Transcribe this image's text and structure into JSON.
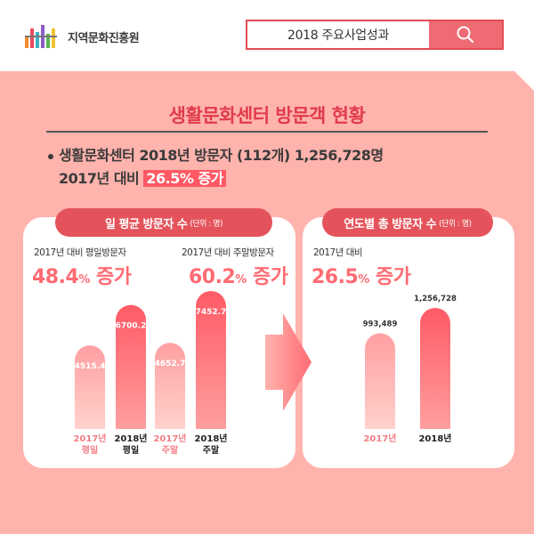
{
  "header": {
    "org_name": "지역문화진흥원",
    "search_text": "2018 주요사업성과",
    "colors": {
      "accent": "#e64c55",
      "button": "#ef6b73"
    }
  },
  "title": "생활문화센터 방문객 현황",
  "summary": {
    "line1": "생활문화센터 2018년 방문자 (112개) 1,256,728명",
    "line2_prefix": "2017년 대비 ",
    "line2_highlight": "26.5% 증가"
  },
  "chart_data": [
    {
      "type": "bar",
      "title": "일 평균 방문자 수",
      "unit": "(단위 : 명)",
      "categories": [
        "2017년 평일",
        "2018년 평일",
        "2017년 주말",
        "2018년 주말"
      ],
      "category_lines": [
        [
          "2017년",
          "평일"
        ],
        [
          "2018년",
          "평일"
        ],
        [
          "2017년",
          "주말"
        ],
        [
          "2018년",
          "주말"
        ]
      ],
      "values": [
        4515.4,
        6700.2,
        4652.7,
        7452.7
      ],
      "value_labels": [
        "4515.4",
        "6700.2",
        "4652.7",
        "7452.7"
      ],
      "annotations": [
        {
          "label": "2017년 대비 평일방문자",
          "value": "48.4",
          "unit": "%",
          "suffix": " 증가"
        },
        {
          "label": "2017년 대비 주말방문자",
          "value": "60.2",
          "unit": "%",
          "suffix": " 증가"
        }
      ]
    },
    {
      "type": "bar",
      "title": "연도별 총 방문자 수",
      "unit": "(단위 : 명)",
      "categories": [
        "2017년",
        "2018년"
      ],
      "values": [
        993489,
        1256728
      ],
      "value_labels": [
        "993,489",
        "1,256,728"
      ],
      "annotation": {
        "label": "2017년 대비",
        "value": "26.5",
        "unit": "%",
        "suffix": " 증가"
      }
    }
  ]
}
